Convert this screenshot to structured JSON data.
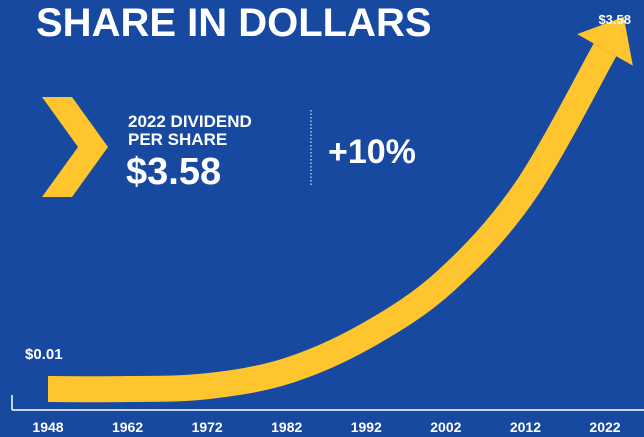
{
  "chart_data": {
    "type": "line",
    "title": "SHARE IN DOLLARS",
    "callout": {
      "label_line1": "2022 DIVIDEND",
      "label_line2": "PER SHARE",
      "value": "$3.58",
      "change": "+10%"
    },
    "categories": [
      "1948",
      "1962",
      "1972",
      "1982",
      "1992",
      "2002",
      "2012",
      "2022"
    ],
    "series": [
      {
        "color": "#fec52e",
        "values": [
          0.01,
          0.01,
          0.04,
          0.2,
          0.57,
          1.15,
          2.1,
          3.58
        ],
        "value_labels": [
          "$0.01",
          null,
          null,
          null,
          null,
          null,
          null,
          "$3.58"
        ]
      }
    ],
    "ylim": [
      0,
      3.8
    ]
  }
}
